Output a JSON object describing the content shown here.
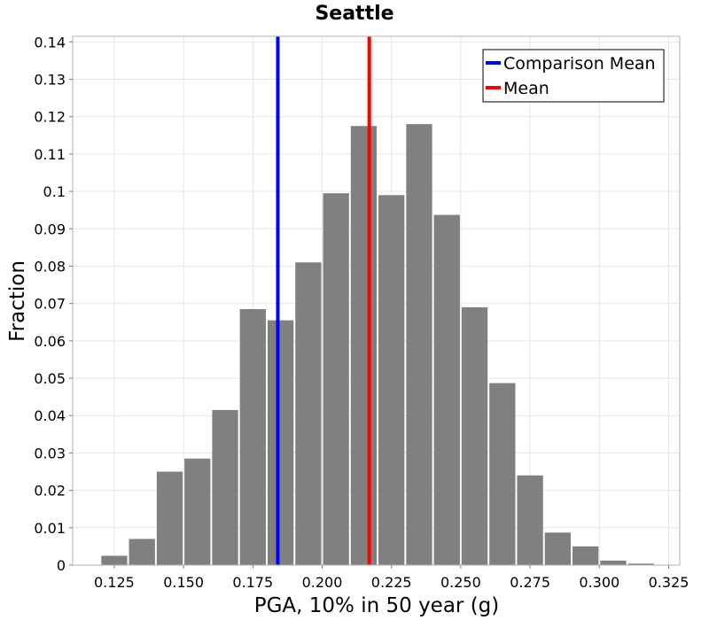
{
  "chart_data": {
    "type": "bar",
    "title": "Seattle",
    "xlabel": "PGA, 10% in 50 year (g)",
    "ylabel": "Fraction",
    "xlim": [
      0.11,
      0.329
    ],
    "ylim": [
      0,
      0.1415
    ],
    "bin_width": 0.01,
    "bins": [
      {
        "x": 0.125,
        "y": 0.0025
      },
      {
        "x": 0.135,
        "y": 0.007
      },
      {
        "x": 0.145,
        "y": 0.025
      },
      {
        "x": 0.155,
        "y": 0.0285
      },
      {
        "x": 0.165,
        "y": 0.0415
      },
      {
        "x": 0.175,
        "y": 0.0685
      },
      {
        "x": 0.185,
        "y": 0.0655
      },
      {
        "x": 0.195,
        "y": 0.081
      },
      {
        "x": 0.205,
        "y": 0.0995
      },
      {
        "x": 0.215,
        "y": 0.1175
      },
      {
        "x": 0.225,
        "y": 0.099
      },
      {
        "x": 0.235,
        "y": 0.118
      },
      {
        "x": 0.245,
        "y": 0.0937
      },
      {
        "x": 0.255,
        "y": 0.069
      },
      {
        "x": 0.265,
        "y": 0.0487
      },
      {
        "x": 0.275,
        "y": 0.024
      },
      {
        "x": 0.285,
        "y": 0.0087
      },
      {
        "x": 0.295,
        "y": 0.005
      },
      {
        "x": 0.305,
        "y": 0.0012
      },
      {
        "x": 0.315,
        "y": 0.0004
      }
    ],
    "xticks": [
      {
        "value": 0.125,
        "label": "0.125"
      },
      {
        "value": 0.15,
        "label": "0.150"
      },
      {
        "value": 0.175,
        "label": "0.175"
      },
      {
        "value": 0.2,
        "label": "0.200"
      },
      {
        "value": 0.225,
        "label": "0.225"
      },
      {
        "value": 0.25,
        "label": "0.250"
      },
      {
        "value": 0.275,
        "label": "0.275"
      },
      {
        "value": 0.3,
        "label": "0.300"
      },
      {
        "value": 0.325,
        "label": "0.325"
      }
    ],
    "yticks": [
      {
        "value": 0,
        "label": "0"
      },
      {
        "value": 0.01,
        "label": "0.01"
      },
      {
        "value": 0.02,
        "label": "0.02"
      },
      {
        "value": 0.03,
        "label": "0.03"
      },
      {
        "value": 0.04,
        "label": "0.04"
      },
      {
        "value": 0.05,
        "label": "0.05"
      },
      {
        "value": 0.06,
        "label": "0.06"
      },
      {
        "value": 0.07,
        "label": "0.07"
      },
      {
        "value": 0.08,
        "label": "0.08"
      },
      {
        "value": 0.09,
        "label": "0.09"
      },
      {
        "value": 0.1,
        "label": "0.1"
      },
      {
        "value": 0.11,
        "label": "0.11"
      },
      {
        "value": 0.12,
        "label": "0.12"
      },
      {
        "value": 0.13,
        "label": "0.13"
      },
      {
        "value": 0.14,
        "label": "0.14"
      }
    ],
    "vlines": [
      {
        "name": "Comparison Mean",
        "x": 0.184,
        "color": "#0000ff"
      },
      {
        "name": "Mean",
        "x": 0.217,
        "color": "#ff0000"
      }
    ],
    "bar_color": "#808080",
    "grid": true,
    "legend_position": "top-right"
  }
}
